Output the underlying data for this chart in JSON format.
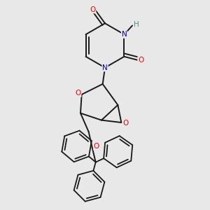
{
  "background_color": "#e8e8e8",
  "line_color": "#1a1a1a",
  "atom_colors": {
    "O": "#ff0000",
    "N": "#0000bb",
    "H": "#4a9090",
    "C": "#1a1a1a"
  },
  "figsize": [
    3.0,
    3.0
  ],
  "dpi": 100
}
